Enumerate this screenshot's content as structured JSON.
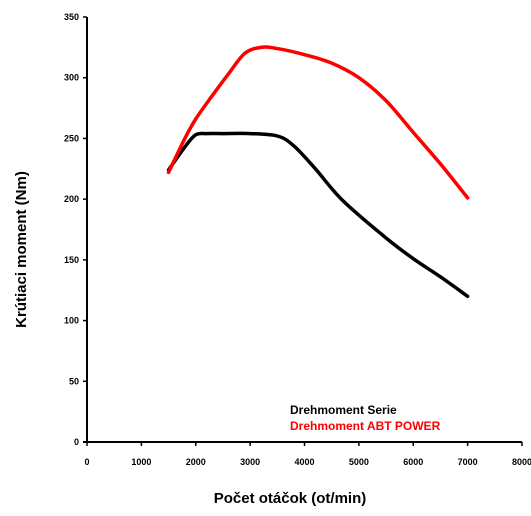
{
  "chart_data": {
    "type": "line",
    "title": "",
    "xlabel": "Počet otáčok (ot/min)",
    "ylabel": "Krútiaci moment (Nm)",
    "xlim": [
      0,
      8000
    ],
    "ylim": [
      0,
      350
    ],
    "xticks": [
      0,
      1000,
      2000,
      3000,
      4000,
      5000,
      6000,
      7000,
      8000
    ],
    "yticks": [
      0,
      50,
      100,
      150,
      200,
      250,
      300,
      350
    ],
    "grid": false,
    "legend_position": "bottom-right",
    "series": [
      {
        "name": "Drehmoment Serie",
        "color": "#000000",
        "x": [
          1500,
          1800,
          2000,
          2200,
          2500,
          3000,
          3500,
          3800,
          4200,
          4700,
          5500,
          6000,
          6500,
          7000
        ],
        "y": [
          224,
          243,
          253,
          254,
          254,
          254,
          252,
          244,
          225,
          199,
          168,
          151,
          136,
          120
        ]
      },
      {
        "name": "Drehmoment ABT POWER",
        "color": "#ff0000",
        "x": [
          1500,
          1800,
          2000,
          2300,
          2600,
          2900,
          3200,
          3500,
          4000,
          4500,
          5000,
          5500,
          6000,
          6500,
          7000
        ],
        "y": [
          222,
          250,
          266,
          285,
          303,
          320,
          325,
          324,
          319,
          312,
          300,
          281,
          255,
          229,
          201
        ]
      }
    ]
  }
}
